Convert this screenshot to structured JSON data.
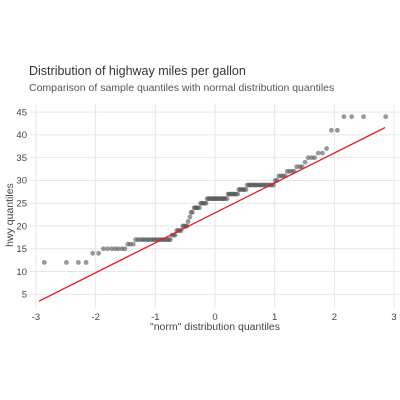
{
  "chart_data": {
    "type": "scatter",
    "title": "Distribution of highway miles per gallon",
    "subtitle": "Comparison of sample quantiles with normal distribution quantiles",
    "xlabel": "\"norm\" distribution quantiles",
    "ylabel": "hwy quantiles",
    "xlim": [
      -3.1,
      3.1
    ],
    "ylim": [
      2,
      47
    ],
    "x_ticks": [
      -3,
      -2,
      -1,
      0,
      1,
      2,
      3
    ],
    "y_ticks": [
      5,
      10,
      15,
      20,
      25,
      30,
      35,
      40,
      45
    ],
    "grid": true,
    "reference_line": {
      "x": [
        -2.95,
        2.85
      ],
      "y": [
        3.5,
        41.6
      ],
      "color": "#e41a1c"
    },
    "point_color": "#555555",
    "point_opacity": 0.6,
    "series": [
      {
        "x": [
          -2.86,
          -2.49,
          -2.29,
          -2.16,
          -2.05,
          -1.95,
          -1.87,
          -1.8,
          -1.73,
          -1.67,
          -1.62,
          -1.56,
          -1.51,
          -1.46,
          -1.42,
          -1.37,
          -1.33,
          -1.29,
          -1.25,
          -1.21,
          -1.18,
          -1.14,
          -1.11,
          -1.07,
          -1.04,
          -1.01,
          -0.98,
          -0.95,
          -0.92,
          -0.89,
          -0.86,
          -0.83,
          -0.8,
          -0.77,
          -0.75,
          -0.72,
          -0.69,
          -0.67,
          -0.64,
          -0.62,
          -0.59,
          -0.57,
          -0.54,
          -0.52,
          -0.49,
          -0.47,
          -0.45,
          -0.42,
          -0.4,
          -0.38,
          -0.35,
          -0.33,
          -0.31,
          -0.29,
          -0.26,
          -0.24,
          -0.22,
          -0.2,
          -0.17,
          -0.15,
          -0.13,
          -0.11,
          -0.09,
          -0.06,
          -0.04,
          -0.02,
          0.0,
          0.02,
          0.04,
          0.06,
          0.09,
          0.11,
          0.13,
          0.15,
          0.17,
          0.2,
          0.22,
          0.24,
          0.26,
          0.29,
          0.31,
          0.33,
          0.35,
          0.38,
          0.4,
          0.42,
          0.45,
          0.47,
          0.49,
          0.52,
          0.54,
          0.57,
          0.59,
          0.62,
          0.64,
          0.67,
          0.69,
          0.72,
          0.75,
          0.77,
          0.8,
          0.83,
          0.86,
          0.89,
          0.92,
          0.95,
          0.98,
          1.01,
          1.04,
          1.07,
          1.11,
          1.14,
          1.18,
          1.21,
          1.25,
          1.29,
          1.33,
          1.37,
          1.42,
          1.46,
          1.51,
          1.56,
          1.62,
          1.67,
          1.73,
          1.8,
          1.87,
          1.95,
          2.05,
          2.16,
          2.29,
          2.49,
          2.86
        ],
        "y": [
          12,
          12,
          12,
          12,
          14,
          14,
          15,
          15,
          15,
          15,
          15,
          15,
          15,
          16,
          16,
          16,
          17,
          17,
          17,
          17,
          17,
          17,
          17,
          17,
          17,
          17,
          17,
          17,
          17,
          17,
          17,
          17,
          17,
          17,
          17,
          18,
          18,
          18,
          19,
          19,
          19,
          19,
          20,
          20,
          20,
          20,
          21,
          22,
          23,
          23,
          24,
          24,
          24,
          24,
          24,
          25,
          25,
          25,
          25,
          25,
          26,
          26,
          26,
          26,
          26,
          26,
          26,
          26,
          26,
          26,
          26,
          26,
          26,
          26,
          26,
          26,
          27,
          27,
          27,
          27,
          27,
          27,
          27,
          27,
          28,
          28,
          28,
          28,
          28,
          28,
          29,
          29,
          29,
          29,
          29,
          29,
          29,
          29,
          29,
          29,
          29,
          29,
          29,
          29,
          29,
          29,
          29,
          30,
          30,
          31,
          31,
          31,
          31,
          32,
          32,
          32,
          32,
          33,
          33,
          33,
          34,
          35,
          35,
          35,
          36,
          36,
          37,
          41,
          41,
          44,
          44,
          44,
          44
        ]
      }
    ]
  }
}
